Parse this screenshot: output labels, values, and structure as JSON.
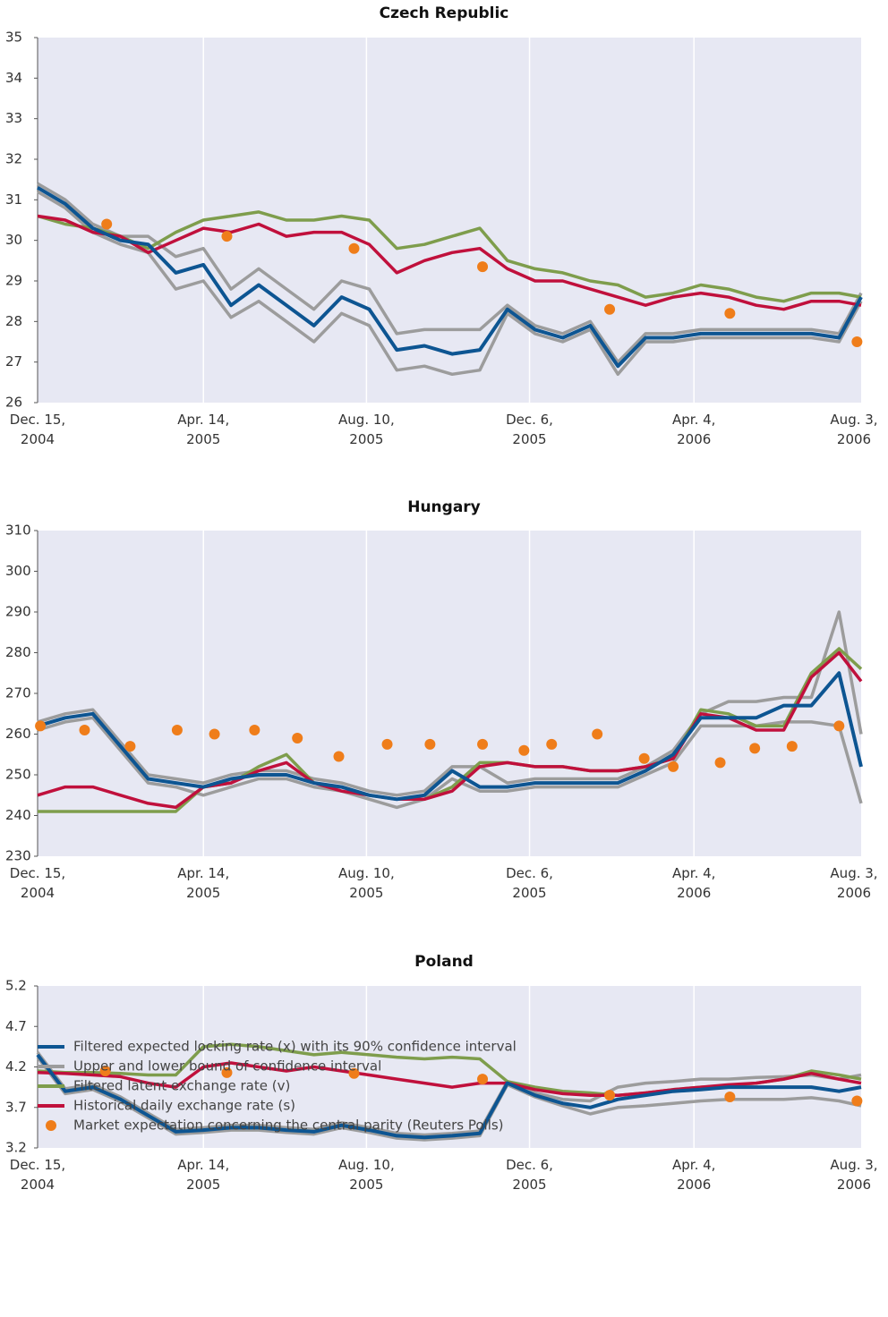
{
  "chart_data": [
    {
      "type": "line",
      "title": "Czech Republic",
      "x": [
        0,
        20,
        40,
        60,
        80,
        100,
        120,
        140,
        160,
        180,
        200,
        220,
        240,
        260,
        280,
        300,
        320,
        340,
        360,
        380,
        400,
        420,
        440,
        460,
        480,
        500,
        520,
        540,
        560,
        580,
        596
      ],
      "xlim": [
        0,
        596
      ],
      "xticks": [
        {
          "value": 0,
          "label": "Dec. 15, 2004"
        },
        {
          "value": 120,
          "label": "Apr. 14, 2005"
        },
        {
          "value": 238,
          "label": "Aug. 10, 2005"
        },
        {
          "value": 356,
          "label": "Dec. 6, 2005"
        },
        {
          "value": 475,
          "label": "Apr. 4, 2006"
        },
        {
          "value": 596,
          "label": "Aug. 3, 2006"
        }
      ],
      "ylim": [
        26,
        35
      ],
      "yticks": [
        26,
        27,
        28,
        29,
        30,
        31,
        32,
        33,
        34,
        35
      ],
      "series": [
        {
          "values": [
            31.3,
            30.9,
            30.3,
            30.0,
            29.9,
            29.2,
            29.4,
            28.4,
            28.9,
            28.4,
            27.9,
            28.6,
            28.3,
            27.3,
            27.4,
            27.2,
            27.3,
            28.3,
            27.8,
            27.6,
            27.9,
            26.9,
            27.6,
            27.6,
            27.7,
            27.7,
            27.7,
            27.7,
            27.7,
            27.6,
            28.6
          ]
        },
        {
          "upper": [
            31.4,
            31.0,
            30.4,
            30.1,
            30.1,
            29.6,
            29.8,
            28.8,
            29.3,
            28.8,
            28.3,
            29.0,
            28.8,
            27.7,
            27.8,
            27.8,
            27.8,
            28.4,
            27.9,
            27.7,
            28.0,
            27.0,
            27.7,
            27.7,
            27.8,
            27.8,
            27.8,
            27.8,
            27.8,
            27.7,
            28.7
          ],
          "lower": [
            31.2,
            30.8,
            30.2,
            29.9,
            29.7,
            28.8,
            29.0,
            28.1,
            28.5,
            28.0,
            27.5,
            28.2,
            27.9,
            26.8,
            26.9,
            26.7,
            26.8,
            28.2,
            27.7,
            27.5,
            27.8,
            26.7,
            27.5,
            27.5,
            27.6,
            27.6,
            27.6,
            27.6,
            27.6,
            27.5,
            28.5
          ]
        },
        {
          "values": [
            30.6,
            30.4,
            30.3,
            30.1,
            29.8,
            30.2,
            30.5,
            30.6,
            30.7,
            30.5,
            30.5,
            30.6,
            30.5,
            29.8,
            29.9,
            30.1,
            30.3,
            29.5,
            29.3,
            29.2,
            29.0,
            28.9,
            28.6,
            28.7,
            28.9,
            28.8,
            28.6,
            28.5,
            28.7,
            28.7,
            28.6
          ]
        },
        {
          "values": [
            30.6,
            30.5,
            30.2,
            30.1,
            29.7,
            30.0,
            30.3,
            30.2,
            30.4,
            30.1,
            30.2,
            30.2,
            29.9,
            29.2,
            29.5,
            29.7,
            29.8,
            29.3,
            29.0,
            29.0,
            28.8,
            28.6,
            28.4,
            28.6,
            28.7,
            28.6,
            28.4,
            28.3,
            28.5,
            28.5,
            28.4
          ]
        },
        {
          "x": [
            50,
            137,
            229,
            322,
            414,
            501,
            593
          ],
          "values": [
            30.4,
            30.1,
            29.8,
            29.35,
            28.3,
            28.2,
            27.5
          ]
        }
      ]
    },
    {
      "type": "line",
      "title": "Hungary",
      "x": [
        0,
        20,
        40,
        60,
        80,
        100,
        120,
        140,
        160,
        180,
        200,
        220,
        240,
        260,
        280,
        300,
        320,
        340,
        360,
        380,
        400,
        420,
        440,
        460,
        480,
        500,
        520,
        540,
        560,
        580,
        596
      ],
      "xlim": [
        0,
        596
      ],
      "xticks": [
        {
          "value": 0,
          "label": "Dec. 15, 2004"
        },
        {
          "value": 120,
          "label": "Apr. 14, 2005"
        },
        {
          "value": 238,
          "label": "Aug. 10, 2005"
        },
        {
          "value": 356,
          "label": "Dec. 6, 2005"
        },
        {
          "value": 475,
          "label": "Apr. 4, 2006"
        },
        {
          "value": 596,
          "label": "Aug. 3, 2006"
        }
      ],
      "ylim": [
        230,
        310
      ],
      "yticks": [
        230,
        240,
        250,
        260,
        270,
        280,
        290,
        300,
        310
      ],
      "series": [
        {
          "values": [
            262,
            264,
            265,
            257,
            249,
            248,
            247,
            249,
            250,
            250,
            248,
            247,
            245,
            244,
            245,
            251,
            247,
            247,
            248,
            248,
            248,
            248,
            251,
            255,
            264,
            264,
            264,
            267,
            267,
            275,
            252
          ]
        },
        {
          "upper": [
            263,
            265,
            266,
            258,
            250,
            249,
            248,
            250,
            251,
            251,
            249,
            248,
            246,
            245,
            246,
            252,
            252,
            248,
            249,
            249,
            249,
            249,
            252,
            256,
            265,
            268,
            268,
            269,
            269,
            290,
            260
          ],
          "lower": [
            261,
            263,
            264,
            256,
            248,
            247,
            245,
            247,
            249,
            249,
            247,
            246,
            244,
            242,
            244,
            249,
            246,
            246,
            247,
            247,
            247,
            247,
            250,
            253,
            262,
            262,
            262,
            263,
            263,
            262,
            243
          ]
        },
        {
          "values": [
            241,
            241,
            241,
            241,
            241,
            241,
            247,
            248,
            252,
            255,
            248,
            247,
            245,
            244,
            244,
            247,
            253,
            253,
            252,
            252,
            251,
            251,
            252,
            254,
            266,
            265,
            262,
            262,
            275,
            281,
            276
          ]
        },
        {
          "values": [
            245,
            247,
            247,
            245,
            243,
            242,
            247,
            248,
            251,
            253,
            248,
            246,
            245,
            244,
            244,
            246,
            252,
            253,
            252,
            252,
            251,
            251,
            252,
            254,
            265,
            264,
            261,
            261,
            274,
            280,
            273
          ]
        },
        {
          "x": [
            2,
            34,
            67,
            101,
            128,
            157,
            188,
            218,
            253,
            284,
            322,
            352,
            372,
            405,
            439,
            460,
            494,
            519,
            546,
            580
          ],
          "values": [
            262,
            261,
            257,
            261,
            260,
            261,
            259,
            254.5,
            257.5,
            257.5,
            257.5,
            256,
            257.5,
            260,
            254,
            252,
            253,
            256.5,
            257,
            262
          ]
        }
      ]
    },
    {
      "type": "line",
      "title": "Poland",
      "x": [
        0,
        20,
        40,
        60,
        80,
        100,
        120,
        140,
        160,
        180,
        200,
        220,
        240,
        260,
        280,
        300,
        320,
        340,
        360,
        380,
        400,
        420,
        440,
        460,
        480,
        500,
        520,
        540,
        560,
        580,
        596
      ],
      "xlim": [
        0,
        596
      ],
      "xticks": [
        {
          "value": 0,
          "label": "Dec. 15, 2004"
        },
        {
          "value": 120,
          "label": "Apr. 14, 2005"
        },
        {
          "value": 238,
          "label": "Aug. 10, 2005"
        },
        {
          "value": 356,
          "label": "Dec. 6, 2005"
        },
        {
          "value": 475,
          "label": "Apr. 4, 2006"
        },
        {
          "value": 596,
          "label": "Aug. 3, 2006"
        }
      ],
      "ylim": [
        3.2,
        5.2
      ],
      "yticks": [
        3.2,
        3.7,
        4.2,
        4.7,
        5.2
      ],
      "series": [
        {
          "values": [
            4.35,
            3.9,
            3.95,
            3.8,
            3.6,
            3.4,
            3.42,
            3.45,
            3.45,
            3.42,
            3.4,
            3.48,
            3.42,
            3.35,
            3.33,
            3.35,
            3.38,
            4.0,
            3.85,
            3.75,
            3.7,
            3.8,
            3.85,
            3.9,
            3.92,
            3.95,
            3.95,
            3.95,
            3.95,
            3.9,
            3.95
          ]
        },
        {
          "upper": [
            4.38,
            3.93,
            3.98,
            3.83,
            3.63,
            3.43,
            3.45,
            3.48,
            3.48,
            3.45,
            3.43,
            3.51,
            3.45,
            3.38,
            3.36,
            3.38,
            3.41,
            4.02,
            3.88,
            3.8,
            3.78,
            3.95,
            4.0,
            4.02,
            4.05,
            4.05,
            4.07,
            4.08,
            4.1,
            4.05,
            4.1
          ],
          "lower": [
            4.32,
            3.87,
            3.92,
            3.77,
            3.57,
            3.37,
            3.39,
            3.42,
            3.42,
            3.39,
            3.37,
            3.45,
            3.39,
            3.32,
            3.3,
            3.32,
            3.35,
            3.98,
            3.83,
            3.72,
            3.62,
            3.7,
            3.72,
            3.75,
            3.78,
            3.8,
            3.8,
            3.8,
            3.82,
            3.78,
            3.72
          ]
        },
        {
          "values": [
            4.15,
            4.13,
            4.13,
            4.12,
            4.1,
            4.1,
            4.45,
            4.48,
            4.45,
            4.4,
            4.35,
            4.38,
            4.35,
            4.32,
            4.3,
            4.32,
            4.3,
            4.02,
            3.95,
            3.9,
            3.88,
            3.85,
            3.88,
            3.92,
            3.95,
            3.97,
            4.0,
            4.05,
            4.15,
            4.1,
            4.05
          ]
        },
        {
          "values": [
            4.13,
            4.12,
            4.1,
            4.08,
            4.0,
            3.95,
            4.2,
            4.25,
            4.2,
            4.15,
            4.2,
            4.15,
            4.1,
            4.05,
            4.0,
            3.95,
            4.0,
            4.0,
            3.92,
            3.87,
            3.85,
            3.85,
            3.88,
            3.92,
            3.95,
            3.98,
            4.0,
            4.05,
            4.12,
            4.05,
            4.0
          ]
        },
        {
          "x": [
            49,
            137,
            229,
            322,
            414,
            501,
            593
          ],
          "values": [
            4.15,
            4.13,
            4.12,
            4.05,
            3.85,
            3.83,
            3.78
          ]
        }
      ]
    }
  ],
  "legend": [
    {
      "name": "Filtered expected locking rate (x) with its 90% confidence interval",
      "color": "#0d5592"
    },
    {
      "name": "Upper and lower bound of confidence interval",
      "color": "#9c9c9c"
    },
    {
      "name": "Filtered latent exchange rate (v)",
      "color": "#7e9d4c"
    },
    {
      "name": "Historical daily exchange rate (s)",
      "color": "#c0103c"
    },
    {
      "name": "Market expectation concerning the central parity (Reuters Polls)",
      "color": "#ef7d1a"
    }
  ]
}
